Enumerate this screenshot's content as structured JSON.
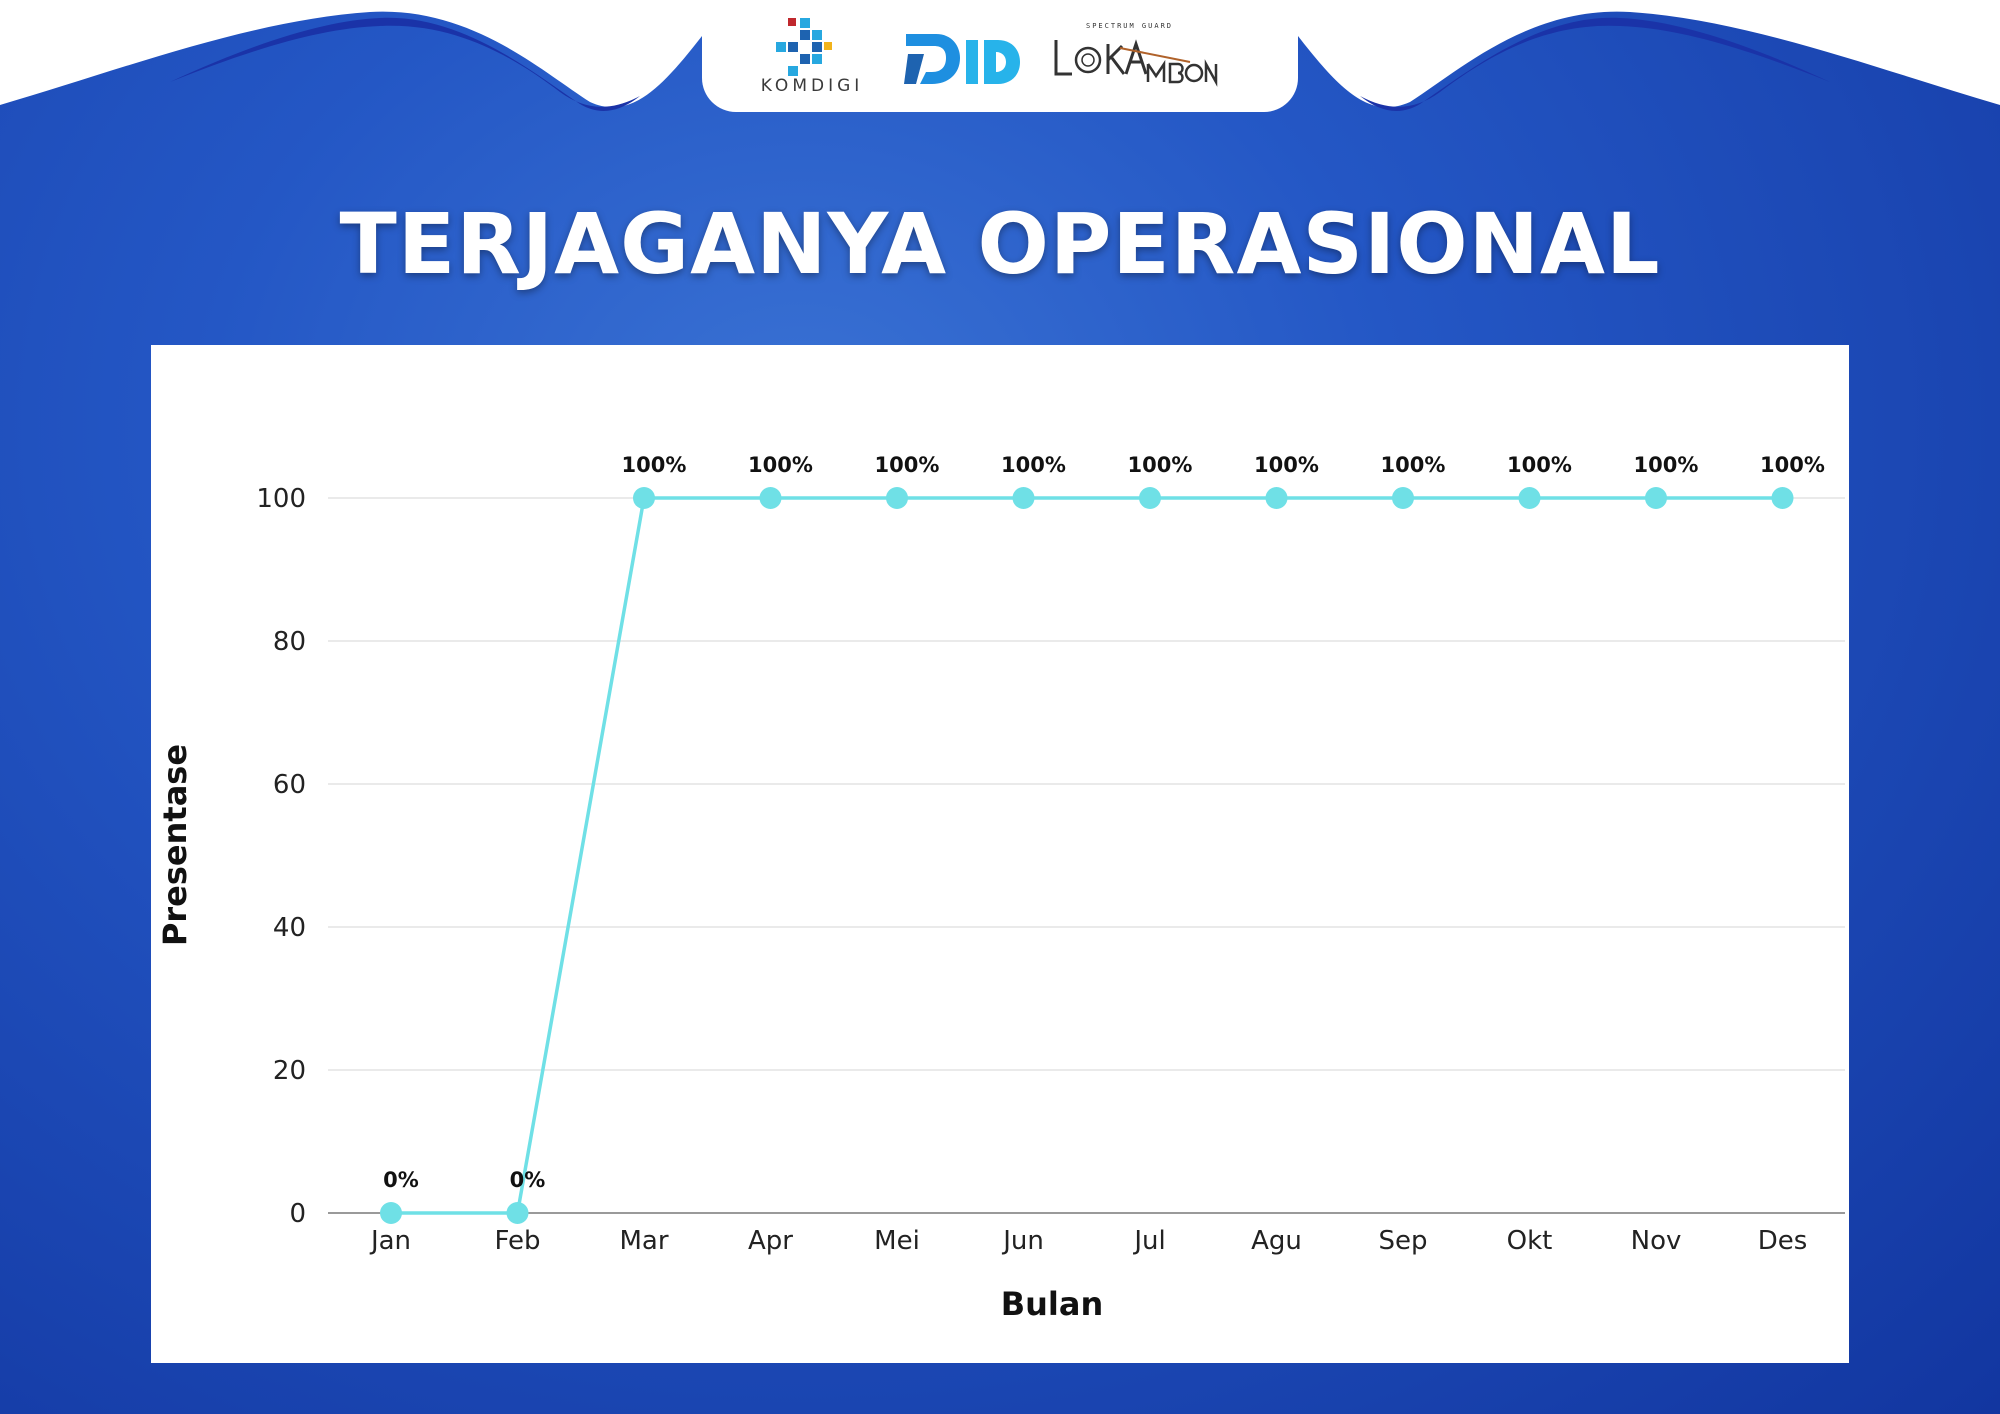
{
  "header": {
    "logos": [
      {
        "name": "komdigi",
        "text": "KOMDIGI"
      },
      {
        "name": "djid",
        "text": "DJID"
      },
      {
        "name": "loka-ambon",
        "text": "LOKAMBON"
      }
    ]
  },
  "title": "TERJAGANYA OPERASIONAL",
  "colors": {
    "background": "#2457c5",
    "line": "#6fe0e6",
    "marker": "#6fe0e6",
    "grid": "#e3e3e3"
  },
  "chart_data": {
    "type": "line",
    "title": "TERJAGANYA OPERASIONAL",
    "xlabel": "Bulan",
    "ylabel": "Presentase",
    "categories": [
      "Jan",
      "Feb",
      "Mar",
      "Apr",
      "Mei",
      "Jun",
      "Jul",
      "Agu",
      "Sep",
      "Okt",
      "Nov",
      "Des"
    ],
    "series": [
      {
        "values": [
          0,
          0,
          100,
          100,
          100,
          100,
          100,
          100,
          100,
          100,
          100,
          100
        ]
      }
    ],
    "data_labels": [
      "0%",
      "0%",
      "100%",
      "100%",
      "100%",
      "100%",
      "100%",
      "100%",
      "100%",
      "100%",
      "100%",
      "100%"
    ],
    "yticks": [
      "0",
      "20",
      "40",
      "60",
      "80",
      "100"
    ],
    "ylim": [
      0,
      100
    ],
    "grid": true,
    "legend": "none"
  }
}
